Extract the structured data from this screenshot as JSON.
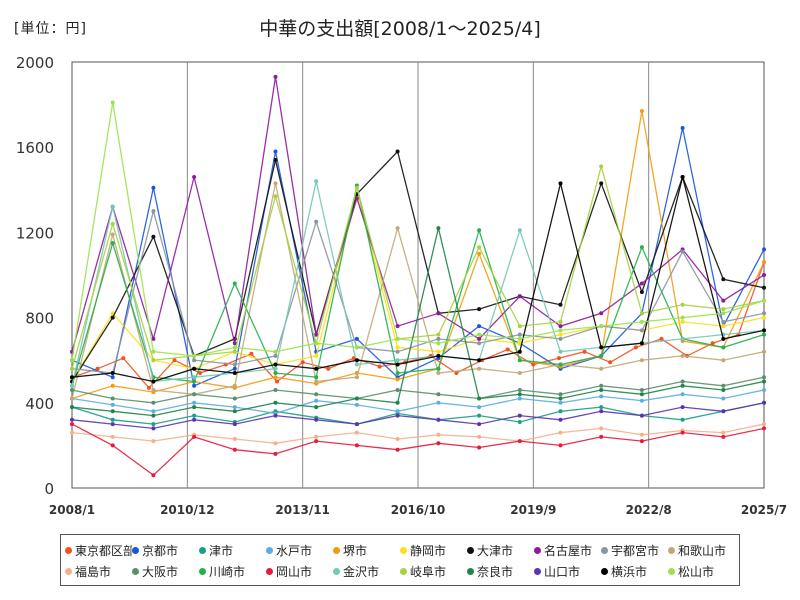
{
  "unit_label": "[単位：円]",
  "chart_data": {
    "type": "line",
    "title": "中華の支出額[2008/1～2025/4]",
    "ylim": [
      0,
      2000
    ],
    "xlim": [
      "2008/1",
      "2025/7"
    ],
    "y_ticks": [
      "0",
      "400",
      "800",
      "1200",
      "1600",
      "2000"
    ],
    "x_ticks": [
      "2008/1",
      "2010/12",
      "2013/11",
      "2016/10",
      "2019/9",
      "2022/8",
      "2025/7"
    ],
    "grid": "vertical",
    "legend": "bottom",
    "series": [
      {
        "name": "東京都区部",
        "color": "#f4511e",
        "values": [
          520,
          560,
          610,
          470,
          600,
          540,
          580,
          630,
          500,
          590,
          560,
          610,
          570,
          590,
          620,
          540,
          600,
          650,
          580,
          610,
          640,
          590,
          660,
          700,
          620,
          680,
          720,
          1060
        ]
      },
      {
        "name": "京都市",
        "color": "#1a56db",
        "values": [
          600,
          520,
          1410,
          480,
          560,
          1580,
          640,
          700,
          520,
          610,
          760,
          680,
          560,
          620,
          820,
          1690,
          760,
          1120
        ]
      },
      {
        "name": "津市",
        "color": "#16a085",
        "values": [
          380,
          320,
          300,
          340,
          310,
          360,
          330,
          300,
          350,
          320,
          340,
          310,
          360,
          380,
          340,
          320,
          360,
          400
        ]
      },
      {
        "name": "水戸市",
        "color": "#5dade2",
        "values": [
          420,
          390,
          360,
          400,
          380,
          350,
          410,
          390,
          360,
          400,
          380,
          420,
          400,
          430,
          410,
          440,
          420,
          460
        ]
      },
      {
        "name": "堺市",
        "color": "#f39c12",
        "values": [
          420,
          480,
          450,
          500,
          470,
          520,
          490,
          540,
          510,
          560,
          1100,
          600,
          570,
          620,
          1770,
          690,
          660,
          1060
        ]
      },
      {
        "name": "静岡市",
        "color": "#f9e11a",
        "values": [
          500,
          820,
          600,
          560,
          640,
          580,
          620,
          1380,
          660,
          640,
          700,
          680,
          720,
          760,
          740,
          780,
          760,
          800
        ]
      },
      {
        "name": "大津市",
        "color": "#111111",
        "values": [
          500,
          800,
          1180,
          620,
          700,
          1540,
          720,
          1380,
          1580,
          820,
          840,
          900,
          860,
          1430,
          920,
          1460,
          980,
          940
        ]
      },
      {
        "name": "名古屋市",
        "color": "#8e1b9c",
        "values": [
          640,
          1320,
          700,
          1460,
          680,
          1930,
          720,
          1360,
          760,
          820,
          700,
          900,
          760,
          820,
          960,
          1120,
          880,
          1000
        ]
      },
      {
        "name": "宇都宮市",
        "color": "#8a94a3",
        "values": [
          560,
          540,
          1300,
          600,
          580,
          620,
          1250,
          660,
          640,
          700,
          680,
          720,
          700,
          760,
          740,
          1110,
          780,
          820
        ]
      },
      {
        "name": "和歌山市",
        "color": "#c2a878",
        "values": [
          420,
          1190,
          460,
          440,
          480,
          1430,
          500,
          520,
          1220,
          540,
          560,
          540,
          580,
          560,
          600,
          620,
          600,
          640
        ]
      },
      {
        "name": "福島市",
        "color": "#f5b08a",
        "values": [
          260,
          240,
          220,
          250,
          230,
          210,
          240,
          260,
          230,
          250,
          240,
          220,
          260,
          280,
          250,
          270,
          260,
          300
        ]
      },
      {
        "name": "大阪市",
        "color": "#5a8f6a",
        "values": [
          460,
          420,
          400,
          440,
          420,
          460,
          440,
          420,
          460,
          440,
          420,
          460,
          440,
          480,
          460,
          500,
          480,
          520
        ]
      },
      {
        "name": "川崎市",
        "color": "#22b14c",
        "values": [
          480,
          1150,
          520,
          500,
          960,
          540,
          520,
          1420,
          540,
          560,
          1210,
          600,
          580,
          620,
          1130,
          700,
          660,
          720
        ]
      },
      {
        "name": "岡山市",
        "color": "#e8193c",
        "values": [
          300,
          200,
          60,
          240,
          180,
          160,
          220,
          200,
          180,
          210,
          190,
          220,
          200,
          240,
          220,
          260,
          240,
          280
        ]
      },
      {
        "name": "金沢市",
        "color": "#76c7b7",
        "values": [
          480,
          1320,
          500,
          520,
          540,
          560,
          1440,
          580,
          600,
          620,
          600,
          1210,
          640,
          660,
          680,
          700,
          720,
          740
        ]
      },
      {
        "name": "岐阜市",
        "color": "#a6d33e",
        "values": [
          560,
          1240,
          600,
          620,
          640,
          1370,
          680,
          1410,
          700,
          720,
          1130,
          760,
          780,
          1510,
          820,
          860,
          840,
          880
        ]
      },
      {
        "name": "奈良市",
        "color": "#1e8449",
        "values": [
          380,
          360,
          340,
          380,
          360,
          400,
          380,
          420,
          400,
          1220,
          420,
          440,
          420,
          460,
          440,
          480,
          460,
          500
        ]
      },
      {
        "name": "山口市",
        "color": "#5b34b0",
        "values": [
          320,
          300,
          280,
          320,
          300,
          340,
          320,
          300,
          340,
          320,
          300,
          340,
          320,
          360,
          340,
          380,
          360,
          400
        ]
      },
      {
        "name": "横浜市",
        "color": "#000000",
        "values": [
          520,
          540,
          500,
          560,
          540,
          580,
          560,
          600,
          580,
          620,
          600,
          640,
          1430,
          660,
          680,
          1460,
          700,
          740
        ]
      },
      {
        "name": "松山市",
        "color": "#9ae34c",
        "values": [
          600,
          1810,
          640,
          620,
          660,
          640,
          680,
          660,
          700,
          680,
          720,
          700,
          740,
          760,
          780,
          800,
          820,
          880
        ]
      }
    ]
  }
}
